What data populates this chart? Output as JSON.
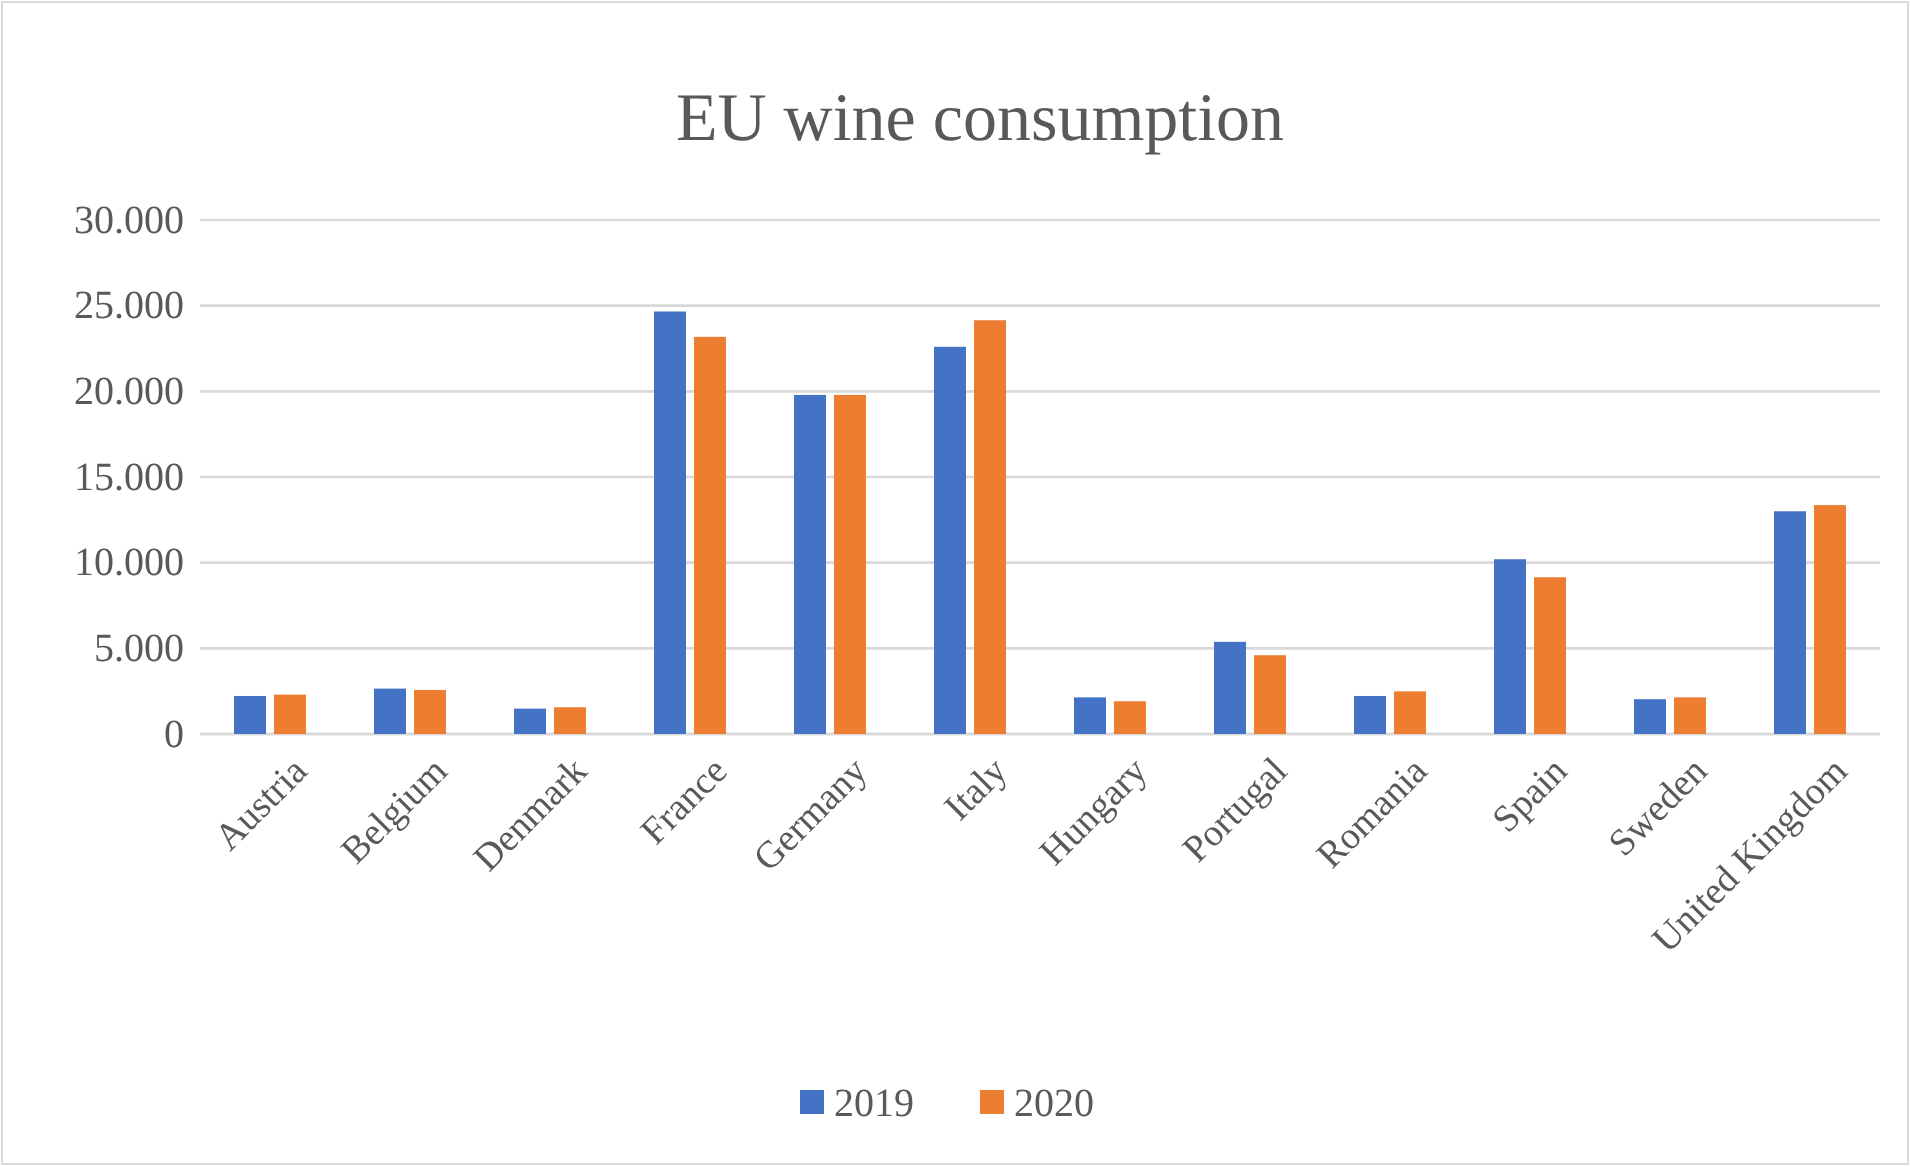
{
  "chart_data": {
    "type": "bar",
    "title": "EU wine consumption",
    "categories": [
      "Austria",
      "Belgium",
      "Denmark",
      "France",
      "Germany",
      "Italy",
      "Hungary",
      "Portugal",
      "Romania",
      "Spain",
      "Sweden",
      "United Kingdom"
    ],
    "series": [
      {
        "name": "2019",
        "color": "#4472c4",
        "values": [
          2220,
          2650,
          1480,
          24660,
          19790,
          22600,
          2140,
          5380,
          2220,
          10200,
          2030,
          13000
        ]
      },
      {
        "name": "2020",
        "color": "#ed7d31",
        "values": [
          2300,
          2570,
          1560,
          23180,
          19790,
          24150,
          1910,
          4600,
          2490,
          9150,
          2140,
          13360
        ]
      }
    ],
    "ylim": [
      0,
      30000
    ],
    "yticks": [
      0,
      {
        "value": 5000,
        "label": "5.000"
      },
      {
        "value": 10000,
        "label": "10.000"
      },
      {
        "value": 15000,
        "label": "15.000"
      },
      {
        "value": 20000,
        "label": "20.000"
      },
      {
        "value": 25000,
        "label": "25.000"
      },
      {
        "value": 30000,
        "label": "30.000"
      }
    ],
    "grid": "y",
    "legend": "bottom"
  }
}
